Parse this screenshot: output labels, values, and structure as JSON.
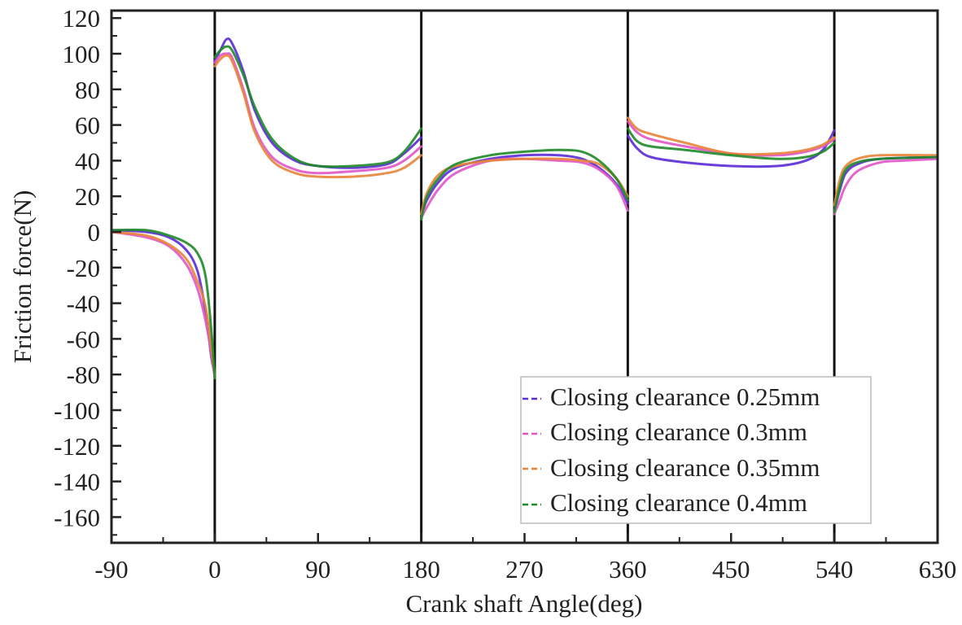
{
  "chart_data": {
    "type": "line",
    "title": "",
    "xlabel": "Crank shaft Angle(deg)",
    "ylabel": "Friction force(N)",
    "xlim": [
      -90,
      630
    ],
    "ylim": [
      -174,
      124
    ],
    "xticks": [
      -90,
      0,
      90,
      180,
      270,
      360,
      450,
      540,
      630
    ],
    "yticks": [
      120,
      100,
      80,
      60,
      40,
      20,
      0,
      -20,
      -40,
      -60,
      -80,
      -100,
      -120,
      -140,
      -160
    ],
    "x_minor_step": 45,
    "y_minor_step": 10,
    "grid": false,
    "vertical_lines": [
      0,
      180,
      360,
      540
    ],
    "legend": {
      "position": "lower right",
      "entries": [
        "Closing clearance 0.25mm",
        "Closing clearance 0.3mm",
        "Closing clearance 0.35mm",
        "Closing clearance 0.4mm"
      ]
    },
    "series": [
      {
        "name": "Closing clearance 0.25mm",
        "color": "#5b2bd6",
        "points": [
          [
            -90,
            1
          ],
          [
            -60,
            0
          ],
          [
            -40,
            -3
          ],
          [
            -25,
            -10
          ],
          [
            -15,
            -22
          ],
          [
            -8,
            -45
          ],
          [
            -3,
            -70
          ],
          [
            0,
            -80
          ],
          [
            0,
            96
          ],
          [
            5,
            102
          ],
          [
            10,
            108
          ],
          [
            15,
            106
          ],
          [
            25,
            90
          ],
          [
            35,
            68
          ],
          [
            50,
            50
          ],
          [
            70,
            40
          ],
          [
            90,
            37
          ],
          [
            120,
            36
          ],
          [
            150,
            38
          ],
          [
            165,
            44
          ],
          [
            180,
            53
          ],
          [
            180,
            9
          ],
          [
            185,
            18
          ],
          [
            195,
            28
          ],
          [
            210,
            36
          ],
          [
            240,
            41
          ],
          [
            270,
            43
          ],
          [
            300,
            43
          ],
          [
            320,
            41
          ],
          [
            335,
            36
          ],
          [
            350,
            27
          ],
          [
            360,
            16
          ],
          [
            360,
            54
          ],
          [
            368,
            47
          ],
          [
            380,
            42
          ],
          [
            410,
            39
          ],
          [
            450,
            37
          ],
          [
            490,
            37
          ],
          [
            515,
            40
          ],
          [
            530,
            46
          ],
          [
            540,
            57
          ],
          [
            540,
            12
          ],
          [
            545,
            24
          ],
          [
            550,
            33
          ],
          [
            560,
            38
          ],
          [
            580,
            41
          ],
          [
            630,
            42
          ]
        ]
      },
      {
        "name": "Closing clearance 0.3mm",
        "color": "#e055c8",
        "points": [
          [
            -90,
            0
          ],
          [
            -60,
            -3
          ],
          [
            -40,
            -8
          ],
          [
            -25,
            -18
          ],
          [
            -15,
            -32
          ],
          [
            -8,
            -50
          ],
          [
            -3,
            -68
          ],
          [
            0,
            -82
          ],
          [
            0,
            95
          ],
          [
            5,
            99
          ],
          [
            10,
            100
          ],
          [
            15,
            98
          ],
          [
            25,
            80
          ],
          [
            35,
            58
          ],
          [
            50,
            42
          ],
          [
            70,
            35
          ],
          [
            90,
            33
          ],
          [
            120,
            34
          ],
          [
            150,
            36
          ],
          [
            165,
            40
          ],
          [
            180,
            48
          ],
          [
            180,
            8
          ],
          [
            185,
            14
          ],
          [
            195,
            24
          ],
          [
            210,
            33
          ],
          [
            240,
            40
          ],
          [
            270,
            41
          ],
          [
            300,
            40
          ],
          [
            320,
            39
          ],
          [
            335,
            35
          ],
          [
            350,
            26
          ],
          [
            360,
            12
          ],
          [
            360,
            62
          ],
          [
            368,
            56
          ],
          [
            380,
            52
          ],
          [
            410,
            48
          ],
          [
            450,
            44
          ],
          [
            490,
            43
          ],
          [
            515,
            45
          ],
          [
            530,
            48
          ],
          [
            540,
            52
          ],
          [
            540,
            10
          ],
          [
            545,
            18
          ],
          [
            550,
            26
          ],
          [
            560,
            34
          ],
          [
            580,
            39
          ],
          [
            600,
            40
          ],
          [
            630,
            41
          ]
        ]
      },
      {
        "name": "Closing clearance 0.35mm",
        "color": "#e8843a",
        "points": [
          [
            -90,
            0
          ],
          [
            -60,
            -2
          ],
          [
            -40,
            -7
          ],
          [
            -25,
            -15
          ],
          [
            -15,
            -28
          ],
          [
            -8,
            -42
          ],
          [
            -3,
            -65
          ],
          [
            0,
            -80
          ],
          [
            0,
            93
          ],
          [
            5,
            97
          ],
          [
            10,
            99
          ],
          [
            15,
            96
          ],
          [
            25,
            78
          ],
          [
            35,
            56
          ],
          [
            50,
            40
          ],
          [
            70,
            33
          ],
          [
            90,
            31
          ],
          [
            120,
            31
          ],
          [
            150,
            33
          ],
          [
            165,
            36
          ],
          [
            180,
            43
          ],
          [
            180,
            10
          ],
          [
            185,
            22
          ],
          [
            195,
            32
          ],
          [
            210,
            37
          ],
          [
            240,
            40
          ],
          [
            270,
            41
          ],
          [
            300,
            41
          ],
          [
            320,
            40
          ],
          [
            335,
            38
          ],
          [
            350,
            30
          ],
          [
            360,
            20
          ],
          [
            360,
            64
          ],
          [
            368,
            58
          ],
          [
            380,
            55
          ],
          [
            410,
            50
          ],
          [
            450,
            44
          ],
          [
            490,
            44
          ],
          [
            515,
            46
          ],
          [
            530,
            49
          ],
          [
            540,
            53
          ],
          [
            540,
            15
          ],
          [
            545,
            30
          ],
          [
            550,
            37
          ],
          [
            560,
            41
          ],
          [
            580,
            43
          ],
          [
            630,
            43
          ]
        ]
      },
      {
        "name": "Closing clearance 0.4mm",
        "color": "#1f8a28",
        "points": [
          [
            -90,
            1
          ],
          [
            -60,
            1
          ],
          [
            -40,
            -2
          ],
          [
            -25,
            -6
          ],
          [
            -15,
            -12
          ],
          [
            -8,
            -25
          ],
          [
            -3,
            -55
          ],
          [
            0,
            -82
          ],
          [
            0,
            98
          ],
          [
            5,
            102
          ],
          [
            10,
            104
          ],
          [
            15,
            102
          ],
          [
            25,
            88
          ],
          [
            35,
            70
          ],
          [
            50,
            52
          ],
          [
            70,
            41
          ],
          [
            90,
            37
          ],
          [
            120,
            37
          ],
          [
            150,
            39
          ],
          [
            165,
            45
          ],
          [
            180,
            58
          ],
          [
            180,
            7
          ],
          [
            185,
            20
          ],
          [
            195,
            30
          ],
          [
            210,
            38
          ],
          [
            240,
            43
          ],
          [
            270,
            45
          ],
          [
            300,
            46
          ],
          [
            320,
            45
          ],
          [
            335,
            40
          ],
          [
            350,
            30
          ],
          [
            360,
            18
          ],
          [
            360,
            58
          ],
          [
            368,
            51
          ],
          [
            380,
            48
          ],
          [
            410,
            46
          ],
          [
            450,
            43
          ],
          [
            490,
            41
          ],
          [
            515,
            42
          ],
          [
            530,
            45
          ],
          [
            540,
            50
          ],
          [
            540,
            11
          ],
          [
            545,
            26
          ],
          [
            550,
            35
          ],
          [
            560,
            39
          ],
          [
            580,
            41
          ],
          [
            630,
            42
          ]
        ]
      }
    ]
  }
}
